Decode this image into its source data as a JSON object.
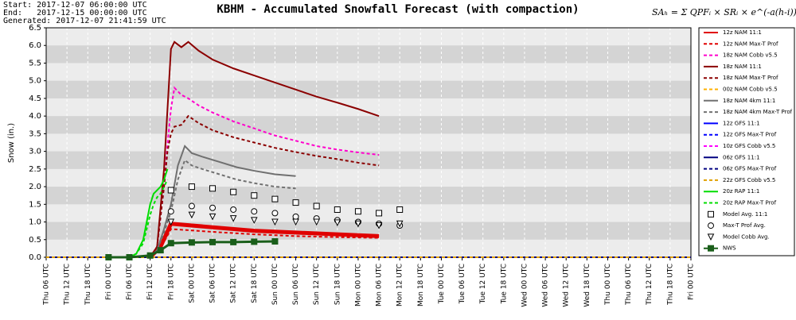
{
  "chart_data": {
    "type": "line",
    "title": "KBHM - Accumulated Snowfall Forecast (with compaction)",
    "header": [
      "Start: 2017-12-07 06:00:00 UTC",
      "End:   2017-12-15 00:00:00 UTC",
      "Generated: 2017-12-07 21:41:59 UTC"
    ],
    "formula": "SAₕ = Σ QPFᵢ × SRᵢ × e^(-a(h-i))",
    "y_label": "Snow (in.)",
    "xlim": [
      0,
      186
    ],
    "ylim": [
      0,
      6.5
    ],
    "yticks": [
      {
        "value": 0,
        "label": "0.0"
      },
      0.5,
      {
        "value": 1,
        "label": "1.0"
      },
      1.5,
      {
        "value": 2,
        "label": "2.0"
      },
      2.5,
      {
        "value": 3,
        "label": "3.0"
      },
      3.5,
      {
        "value": 4,
        "label": "4.0"
      },
      4.5,
      {
        "value": 5,
        "label": "5.0"
      },
      5.5,
      {
        "value": 6,
        "label": "6.0"
      },
      6.5
    ],
    "xticks": [
      {
        "value": 0,
        "label": "Thu 06 UTC"
      },
      {
        "value": 6,
        "label": "Thu 12 UTC"
      },
      {
        "value": 12,
        "label": "Thu 18 UTC"
      },
      {
        "value": 18,
        "label": "Fri 00 UTC"
      },
      {
        "value": 24,
        "label": "Fri 06 UTC"
      },
      {
        "value": 30,
        "label": "Fri 12 UTC"
      },
      {
        "value": 36,
        "label": "Fri 18 UTC"
      },
      {
        "value": 42,
        "label": "Sat 00 UTC"
      },
      {
        "value": 48,
        "label": "Sat 06 UTC"
      },
      {
        "value": 54,
        "label": "Sat 12 UTC"
      },
      {
        "value": 60,
        "label": "Sat 18 UTC"
      },
      {
        "value": 66,
        "label": "Sun 00 UTC"
      },
      {
        "value": 72,
        "label": "Sun 06 UTC"
      },
      {
        "value": 78,
        "label": "Sun 12 UTC"
      },
      {
        "value": 84,
        "label": "Sun 18 UTC"
      },
      {
        "value": 90,
        "label": "Mon 00 UTC"
      },
      {
        "value": 96,
        "label": "Mon 06 UTC"
      },
      {
        "value": 102,
        "label": "Mon 12 UTC"
      },
      {
        "value": 108,
        "label": "Mon 18 UTC"
      },
      {
        "value": 114,
        "label": "Tue 00 UTC"
      },
      {
        "value": 120,
        "label": "Tue 06 UTC"
      },
      {
        "value": 126,
        "label": "Tue 12 UTC"
      },
      {
        "value": 132,
        "label": "Tue 18 UTC"
      },
      {
        "value": 138,
        "label": "Wed 00 UTC"
      },
      {
        "value": 144,
        "label": "Wed 06 UTC"
      },
      {
        "value": 150,
        "label": "Wed 12 UTC"
      },
      {
        "value": 156,
        "label": "Wed 18 UTC"
      },
      {
        "value": 162,
        "label": "Thu 00 UTC"
      },
      {
        "value": 168,
        "label": "Thu 06 UTC"
      },
      {
        "value": 174,
        "label": "Thu 12 UTC"
      },
      {
        "value": 180,
        "label": "Thu 18 UTC"
      },
      {
        "value": 186,
        "label": "Fri 00 UTC"
      }
    ],
    "grid": true,
    "series": [
      {
        "name": "12z NAM 11:1",
        "color": "#e00000",
        "style": "solid",
        "width": 5,
        "x": [
          30,
          33,
          36,
          48,
          60,
          72,
          84,
          96
        ],
        "values": [
          0,
          0.3,
          0.95,
          0.85,
          0.75,
          0.7,
          0.65,
          0.6
        ]
      },
      {
        "name": "12z NAM Max-T Prof",
        "color": "#e00000",
        "style": "dashed",
        "width": 2,
        "x": [
          30,
          33,
          36,
          48,
          60,
          72,
          84,
          96
        ],
        "values": [
          0,
          0.25,
          0.8,
          0.72,
          0.65,
          0.6,
          0.57,
          0.55
        ]
      },
      {
        "name": "18z NAM Cobb v5.5",
        "color": "#ff00cc",
        "style": "dashed",
        "width": 2,
        "x": [
          30,
          32,
          34,
          35,
          36,
          37,
          39,
          41,
          44,
          48,
          54,
          60,
          66,
          72,
          78,
          84,
          90,
          96
        ],
        "values": [
          0,
          0.3,
          2.0,
          3.2,
          4.2,
          4.8,
          4.6,
          4.5,
          4.3,
          4.1,
          3.85,
          3.65,
          3.45,
          3.3,
          3.15,
          3.05,
          2.97,
          2.9
        ]
      },
      {
        "name": "18z NAM 11:1",
        "color": "#8b0000",
        "style": "solid",
        "width": 2,
        "x": [
          30,
          32,
          34,
          35,
          36,
          37,
          39,
          41,
          44,
          48,
          54,
          60,
          66,
          72,
          78,
          84,
          90,
          96
        ],
        "values": [
          0,
          0.3,
          2.5,
          4.2,
          5.9,
          6.1,
          5.95,
          6.1,
          5.85,
          5.6,
          5.35,
          5.15,
          4.95,
          4.75,
          4.55,
          4.38,
          4.2,
          4.0
        ]
      },
      {
        "name": "18z NAM Max-T Prof",
        "color": "#8b0000",
        "style": "dashed",
        "width": 2,
        "x": [
          30,
          32,
          34,
          35,
          36,
          37,
          39,
          41,
          44,
          48,
          54,
          60,
          66,
          72,
          78,
          84,
          90,
          96
        ],
        "values": [
          0,
          0.3,
          2.0,
          3.0,
          3.5,
          3.7,
          3.75,
          4.0,
          3.8,
          3.6,
          3.4,
          3.25,
          3.1,
          2.98,
          2.87,
          2.78,
          2.68,
          2.6
        ]
      },
      {
        "name": "00z NAM Cobb v5.5",
        "color": "#ffb000",
        "style": "dashed",
        "width": 2,
        "x": [
          0,
          186
        ],
        "values": [
          0,
          0
        ]
      },
      {
        "name": "18z NAM 4km 11:1",
        "color": "#707070",
        "style": "solid",
        "width": 2,
        "x": [
          30,
          32,
          34,
          36,
          38,
          40,
          42,
          45,
          50,
          55,
          60,
          66,
          72
        ],
        "values": [
          0,
          0.2,
          0.8,
          1.5,
          2.6,
          3.15,
          2.95,
          2.85,
          2.7,
          2.55,
          2.45,
          2.35,
          2.3
        ]
      },
      {
        "name": "18z NAM 4km Max-T Prof",
        "color": "#707070",
        "style": "dashed",
        "width": 2,
        "x": [
          30,
          32,
          34,
          36,
          38,
          40,
          42,
          45,
          50,
          55,
          60,
          66,
          72
        ],
        "values": [
          0,
          0.2,
          0.7,
          1.3,
          2.2,
          2.75,
          2.6,
          2.5,
          2.35,
          2.2,
          2.1,
          2.0,
          1.95
        ]
      },
      {
        "name": "12z GFS 11:1",
        "color": "#0000ff",
        "style": "solid",
        "width": 2,
        "x": [
          0,
          186
        ],
        "values": [
          0,
          0
        ]
      },
      {
        "name": "12z GFS Max-T Prof",
        "color": "#0000ff",
        "style": "dashed",
        "width": 2,
        "x": [
          0,
          186
        ],
        "values": [
          0,
          0
        ]
      },
      {
        "name": "10z GFS Cobb v5.5",
        "color": "#ff00ff",
        "style": "dashed",
        "width": 2,
        "x": [
          0,
          186
        ],
        "values": [
          0,
          0
        ]
      },
      {
        "name": "06z GFS 11:1",
        "color": "#000080",
        "style": "solid",
        "width": 2,
        "x": [
          0,
          186
        ],
        "values": [
          0,
          0
        ]
      },
      {
        "name": "06z GFS Max-T Prof",
        "color": "#000080",
        "style": "dashed",
        "width": 2,
        "x": [
          0,
          186
        ],
        "values": [
          0,
          0
        ]
      },
      {
        "name": "22z GFS Cobb v5.5",
        "color": "#e0a000",
        "style": "dashed",
        "width": 2,
        "x": [
          0,
          186
        ],
        "values": [
          0,
          0
        ]
      },
      {
        "name": "20z RAP 11:1",
        "color": "#00dd00",
        "style": "solid",
        "width": 2,
        "x": [
          24,
          26,
          28,
          30,
          31,
          32,
          33,
          34,
          35
        ],
        "values": [
          0,
          0.1,
          0.5,
          1.5,
          1.8,
          1.9,
          2.0,
          2.2,
          2.5
        ]
      },
      {
        "name": "20z RAP Max-T Prof",
        "color": "#00dd00",
        "style": "dashed",
        "width": 2,
        "x": [
          24,
          26,
          28,
          30,
          31,
          32,
          33,
          34,
          35
        ],
        "values": [
          0,
          0.1,
          0.4,
          1.2,
          1.5,
          1.7,
          1.8,
          2.0,
          2.2
        ]
      },
      {
        "name": "Model Avg. 11:1",
        "color": "#000000",
        "style": "markers",
        "marker": "square",
        "x": [
          36,
          42,
          48,
          54,
          60,
          66,
          72,
          78,
          84,
          90,
          96,
          102
        ],
        "values": [
          1.9,
          2.0,
          1.95,
          1.85,
          1.75,
          1.65,
          1.55,
          1.45,
          1.35,
          1.3,
          1.25,
          1.35
        ]
      },
      {
        "name": "Max-T Prof Avg.",
        "color": "#000000",
        "style": "markers",
        "marker": "circle",
        "x": [
          36,
          42,
          48,
          54,
          60,
          66,
          72,
          78,
          84,
          90,
          96,
          102
        ],
        "values": [
          1.3,
          1.45,
          1.4,
          1.35,
          1.3,
          1.25,
          1.15,
          1.1,
          1.05,
          1.0,
          0.95,
          0.9
        ]
      },
      {
        "name": "Model Cobb Avg.",
        "color": "#000000",
        "style": "markers",
        "marker": "triangle",
        "x": [
          36,
          42,
          48,
          54,
          60,
          66,
          72,
          78,
          84,
          90,
          96,
          102
        ],
        "values": [
          1.0,
          1.2,
          1.15,
          1.1,
          1.05,
          1.0,
          1.0,
          1.0,
          0.98,
          0.95,
          0.9,
          0.95
        ]
      },
      {
        "name": "NWS",
        "color": "#1a5e1a",
        "style": "line-markers",
        "marker": "square",
        "width": 3,
        "x": [
          18,
          24,
          30,
          33,
          36,
          42,
          48,
          54,
          60,
          66
        ],
        "values": [
          0,
          0,
          0.05,
          0.2,
          0.4,
          0.42,
          0.43,
          0.43,
          0.44,
          0.45
        ]
      }
    ]
  }
}
